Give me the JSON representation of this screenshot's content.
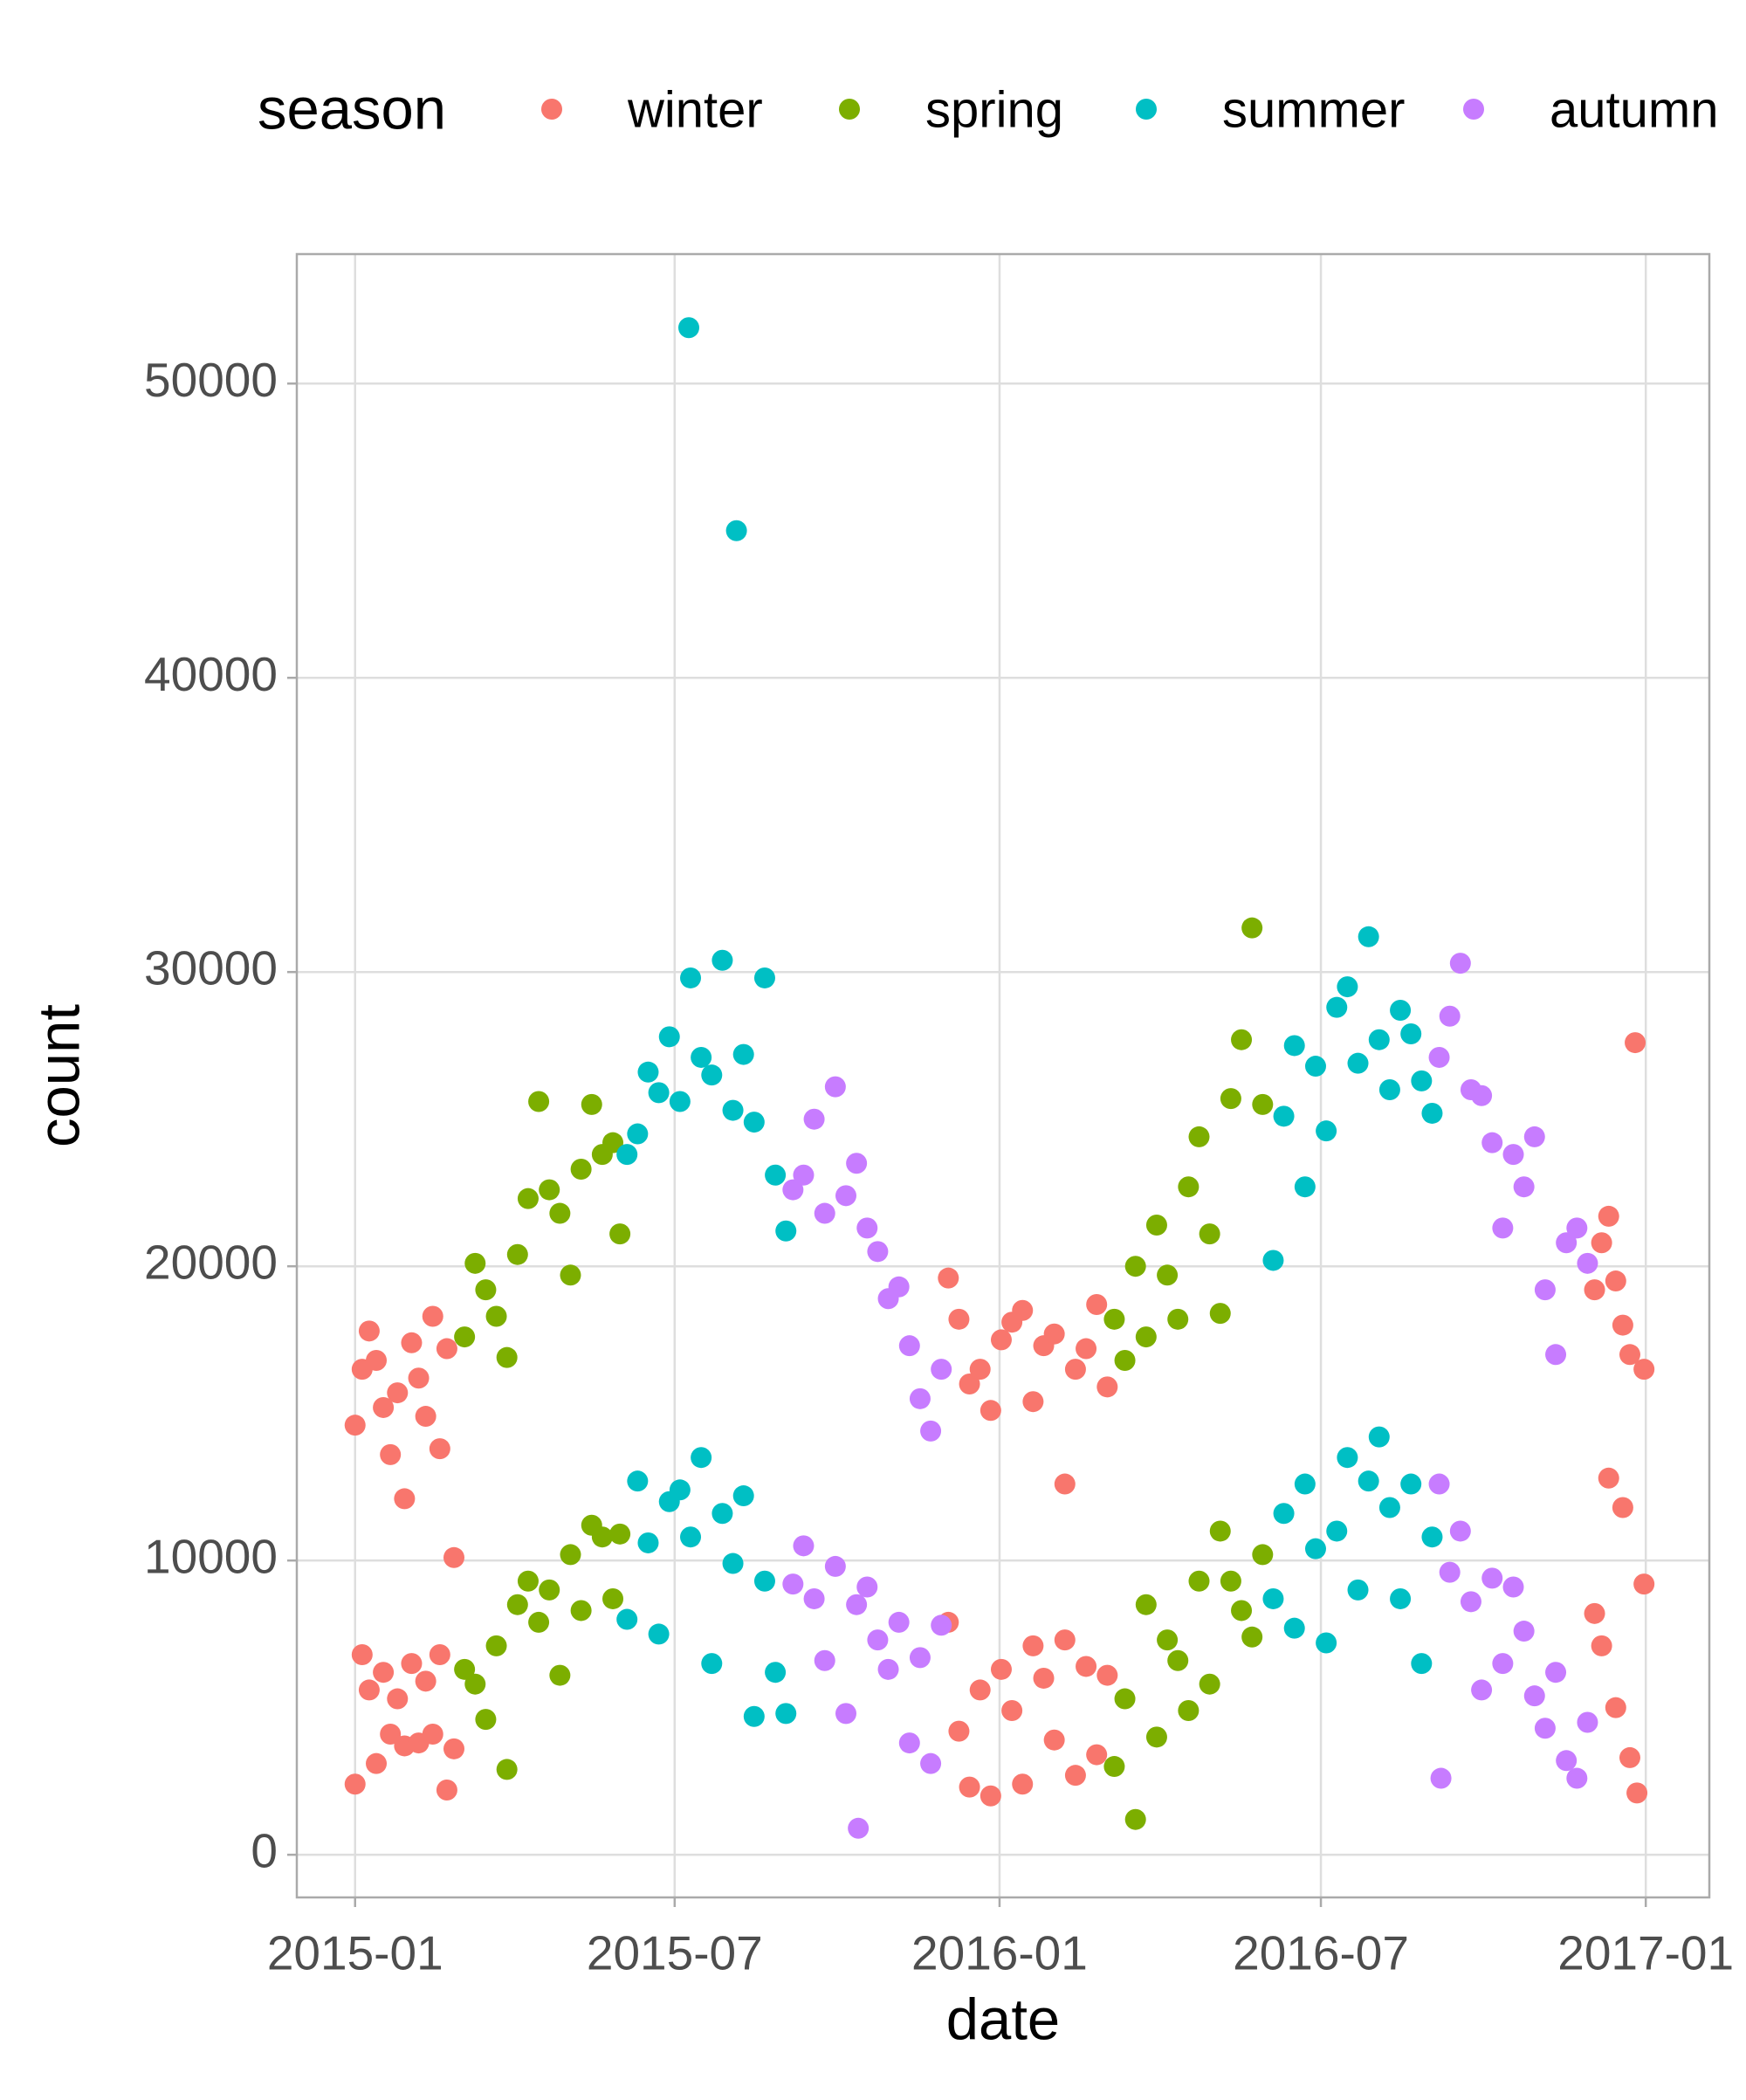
{
  "chart_data": {
    "type": "scatter",
    "x_label": "date",
    "y_label": "count",
    "legend_title": "season",
    "legend_position": "top",
    "grid": true,
    "xlim": [
      -33,
      767
    ],
    "xticks": [
      {
        "value": 0,
        "label": "2015-01"
      },
      {
        "value": 181,
        "label": "2015-07"
      },
      {
        "value": 365,
        "label": "2016-01"
      },
      {
        "value": 547,
        "label": "2016-07"
      },
      {
        "value": 731,
        "label": "2017-01"
      }
    ],
    "ylim": [
      -1450,
      54400
    ],
    "yticks": [
      0,
      10000,
      20000,
      30000,
      40000,
      50000
    ],
    "series": [
      {
        "name": "winter",
        "color": "#F8766D",
        "x": [
          0,
          4,
          8,
          12,
          16,
          20,
          24,
          28,
          32,
          36,
          40,
          44,
          48,
          52,
          56,
          0,
          4,
          8,
          12,
          16,
          20,
          24,
          28,
          32,
          36,
          40,
          44,
          48,
          52,
          56,
          336,
          342,
          348,
          354,
          360,
          366,
          372,
          378,
          384,
          390,
          396,
          402,
          408,
          414,
          420,
          426,
          336,
          342,
          348,
          354,
          360,
          366,
          372,
          378,
          384,
          390,
          396,
          402,
          408,
          414,
          420,
          426,
          702,
          706,
          710,
          714,
          718,
          722,
          725,
          730,
          702,
          706,
          710,
          714,
          718,
          722,
          726,
          730
        ],
        "values": [
          14600,
          16500,
          17800,
          16800,
          15200,
          13600,
          15700,
          12100,
          17400,
          16200,
          14900,
          18300,
          13800,
          17200,
          10100,
          2400,
          6800,
          5600,
          3100,
          6200,
          4100,
          5300,
          3700,
          6500,
          3800,
          5900,
          4100,
          6800,
          2200,
          3600,
          19600,
          18200,
          16000,
          16500,
          15100,
          17500,
          18100,
          18500,
          15400,
          17300,
          17700,
          12600,
          16500,
          17200,
          18700,
          15900,
          7900,
          4200,
          2300,
          5600,
          2000,
          6300,
          4900,
          2400,
          7100,
          6000,
          3900,
          7300,
          2700,
          6400,
          3400,
          6100,
          19200,
          20800,
          21700,
          19500,
          18000,
          17000,
          27600,
          16500,
          8200,
          7100,
          12800,
          5000,
          11800,
          3300,
          2100,
          9200
        ]
      },
      {
        "name": "spring",
        "color": "#7CAE00",
        "x": [
          62,
          68,
          74,
          80,
          86,
          92,
          98,
          104,
          110,
          116,
          122,
          128,
          134,
          140,
          146,
          150,
          62,
          68,
          74,
          80,
          86,
          92,
          98,
          104,
          110,
          116,
          122,
          128,
          134,
          140,
          146,
          150,
          430,
          436,
          442,
          448,
          454,
          460,
          466,
          472,
          478,
          484,
          490,
          496,
          502,
          508,
          514,
          430,
          436,
          442,
          448,
          454,
          460,
          466,
          472,
          478,
          484,
          490,
          496,
          502,
          508,
          514
        ],
        "values": [
          17600,
          20100,
          19200,
          18300,
          16900,
          20400,
          22300,
          25600,
          22600,
          21800,
          19700,
          23300,
          25500,
          23800,
          24200,
          21100,
          6300,
          5800,
          4600,
          7100,
          2900,
          8500,
          9300,
          7900,
          9000,
          6100,
          10200,
          8300,
          11200,
          10800,
          8700,
          10900,
          18200,
          16800,
          20000,
          17600,
          21400,
          19700,
          18200,
          22700,
          24400,
          21100,
          18400,
          25700,
          27700,
          31500,
          25500,
          3000,
          5300,
          1200,
          8500,
          4000,
          7300,
          6600,
          4900,
          9300,
          5800,
          11000,
          9300,
          8300,
          7400,
          10200
        ]
      },
      {
        "name": "summer",
        "color": "#00BFC4",
        "x": [
          154,
          160,
          166,
          172,
          178,
          184,
          190,
          196,
          202,
          208,
          214,
          220,
          226,
          232,
          238,
          244,
          154,
          160,
          166,
          172,
          178,
          184,
          190,
          196,
          202,
          208,
          214,
          220,
          226,
          232,
          238,
          244,
          189,
          216,
          520,
          526,
          532,
          538,
          544,
          550,
          556,
          562,
          568,
          574,
          580,
          586,
          592,
          598,
          604,
          610,
          520,
          526,
          532,
          538,
          544,
          550,
          556,
          562,
          568,
          574,
          580,
          586,
          592,
          598,
          604,
          610
        ],
        "values": [
          23800,
          24500,
          26600,
          25900,
          27800,
          25600,
          29800,
          27100,
          26500,
          30400,
          25300,
          27200,
          24900,
          29800,
          23100,
          21200,
          8000,
          12700,
          10600,
          7500,
          12000,
          12400,
          10800,
          13500,
          6500,
          11600,
          9900,
          12200,
          4700,
          9300,
          6200,
          4800,
          51900,
          45000,
          20200,
          25100,
          27500,
          22700,
          26800,
          24600,
          28800,
          29500,
          26900,
          31200,
          27700,
          26000,
          28700,
          27900,
          26300,
          25200,
          8700,
          11600,
          7700,
          12600,
          10400,
          7200,
          11000,
          13500,
          9000,
          12700,
          14200,
          11800,
          8700,
          12600,
          6500,
          10800
        ]
      },
      {
        "name": "autumn",
        "color": "#C77CFF",
        "x": [
          248,
          254,
          260,
          266,
          272,
          278,
          284,
          290,
          296,
          302,
          308,
          314,
          320,
          326,
          332,
          248,
          254,
          260,
          266,
          272,
          278,
          284,
          290,
          296,
          302,
          308,
          314,
          320,
          326,
          332,
          285,
          614,
          620,
          626,
          632,
          638,
          644,
          650,
          656,
          662,
          668,
          674,
          680,
          686,
          692,
          698,
          614,
          620,
          626,
          632,
          638,
          644,
          650,
          656,
          662,
          668,
          674,
          680,
          686,
          692,
          698,
          615
        ],
        "values": [
          22600,
          23100,
          25000,
          21800,
          26100,
          22400,
          23500,
          21300,
          20500,
          18900,
          19300,
          17300,
          15500,
          14400,
          16500,
          9200,
          10500,
          8700,
          6600,
          9800,
          4800,
          8500,
          9100,
          7300,
          6300,
          7900,
          3800,
          6700,
          3100,
          7800,
          900,
          27100,
          28500,
          30300,
          26000,
          25800,
          24200,
          21300,
          23800,
          22700,
          24400,
          19200,
          17000,
          20800,
          21300,
          20100,
          12600,
          9600,
          11000,
          8600,
          5600,
          9400,
          6500,
          9100,
          7600,
          5400,
          4300,
          6200,
          3200,
          2600,
          4500,
          2600
        ]
      }
    ]
  }
}
